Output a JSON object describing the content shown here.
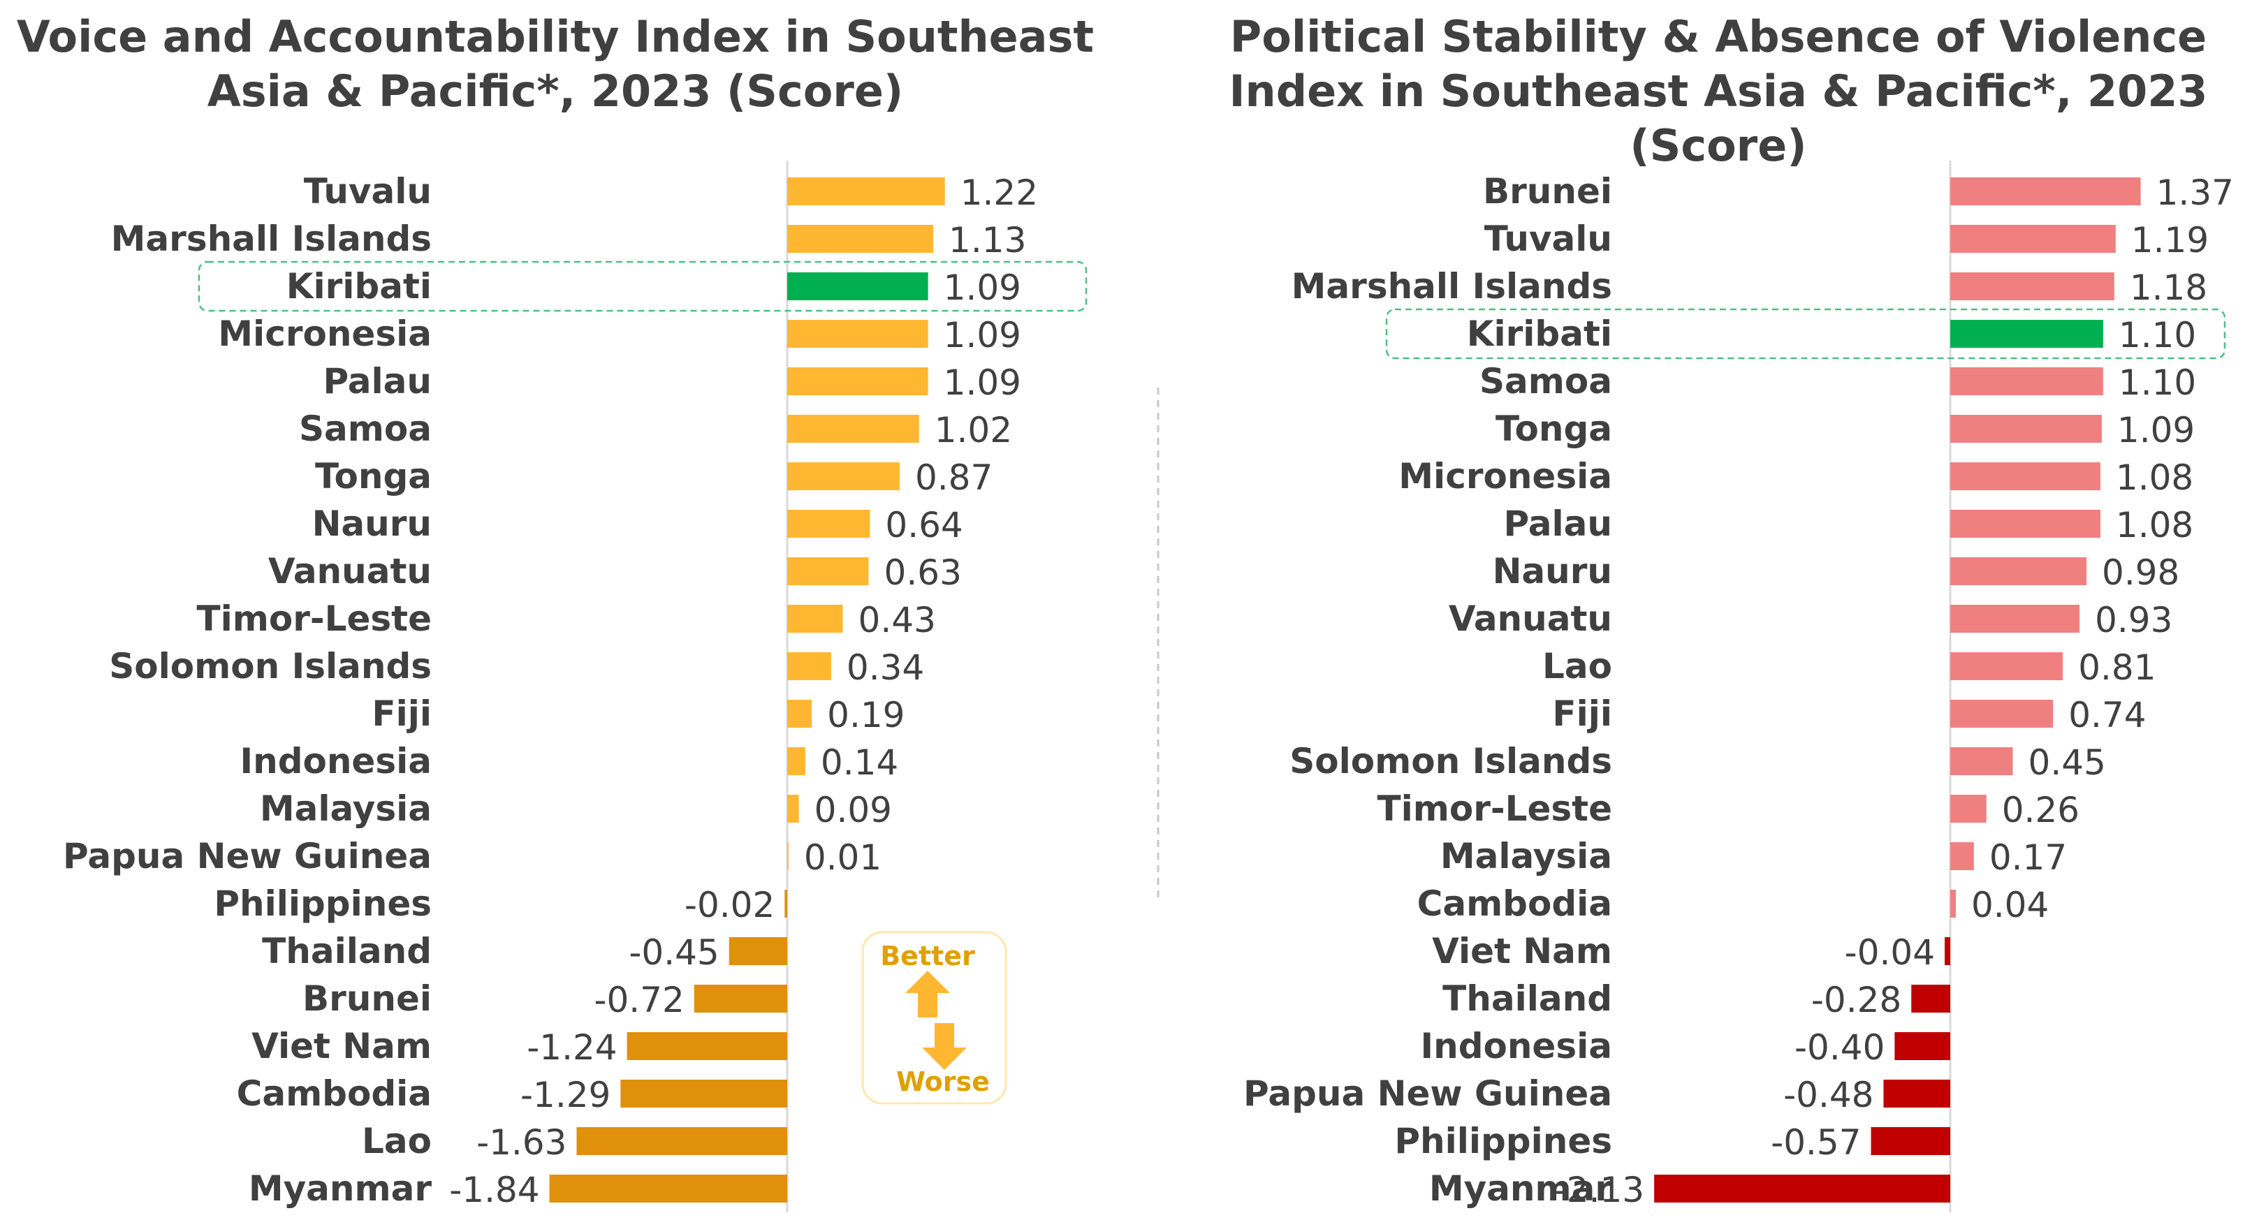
{
  "colors": {
    "highlight": "#00B050",
    "left_positive": "#FFB732",
    "left_negative": "#E0900A",
    "right_positive": "#F08080",
    "right_negative": "#C00000",
    "highlight_box": "#4CC080",
    "legend_arrow": "#FFB732",
    "legend_text": "#E0A000"
  },
  "legend": {
    "better": "Better",
    "worse": "Worse",
    "icons": [
      "arrow-up-icon",
      "arrow-down-icon"
    ]
  },
  "chart_data": [
    {
      "type": "bar",
      "orientation": "horizontal",
      "title": "Voice and Accountability Index in Southeast Asia & Pacific*, 2023 (Score)",
      "highlight": "Kiribati",
      "categories": [
        "Tuvalu",
        "Marshall Islands",
        "Kiribati",
        "Micronesia",
        "Palau",
        "Samoa",
        "Tonga",
        "Nauru",
        "Vanuatu",
        "Timor-Leste",
        "Solomon Islands",
        "Fiji",
        "Indonesia",
        "Malaysia",
        "Papua New Guinea",
        "Philippines",
        "Thailand",
        "Brunei",
        "Viet Nam",
        "Cambodia",
        "Lao",
        "Myanmar"
      ],
      "values": [
        1.22,
        1.13,
        1.09,
        1.09,
        1.09,
        1.02,
        0.87,
        0.64,
        0.63,
        0.43,
        0.34,
        0.19,
        0.14,
        0.09,
        0.01,
        -0.02,
        -0.45,
        -0.72,
        -1.24,
        -1.29,
        -1.63,
        -1.84
      ],
      "labels": [
        "1.22",
        "1.13",
        "1.09",
        "1.09",
        "1.09",
        "1.02",
        "0.87",
        "0.64",
        "0.63",
        "0.43",
        "0.34",
        "0.19",
        "0.14",
        "0.09",
        "0.01",
        "-0.02",
        "-0.45",
        "-0.72",
        "-1.24",
        "-1.29",
        "-1.63",
        "-1.84"
      ],
      "xlim": [
        -2.0,
        1.5
      ]
    },
    {
      "type": "bar",
      "orientation": "horizontal",
      "title": "Political Stability & Absence of Violence Index in Southeast Asia & Pacific*, 2023 (Score)",
      "highlight": "Kiribati",
      "categories": [
        "Brunei",
        "Tuvalu",
        "Marshall Islands",
        "Kiribati",
        "Samoa",
        "Tonga",
        "Micronesia",
        "Palau",
        "Nauru",
        "Vanuatu",
        "Lao",
        "Fiji",
        "Solomon Islands",
        "Timor-Leste",
        "Malaysia",
        "Cambodia",
        "Viet Nam",
        "Thailand",
        "Indonesia",
        "Papua New Guinea",
        "Philippines",
        "Myanmar"
      ],
      "values": [
        1.37,
        1.19,
        1.18,
        1.1,
        1.1,
        1.09,
        1.08,
        1.08,
        0.98,
        0.93,
        0.81,
        0.74,
        0.45,
        0.26,
        0.17,
        0.04,
        -0.04,
        -0.28,
        -0.4,
        -0.48,
        -0.57,
        -2.13
      ],
      "labels": [
        "1.37",
        "1.19",
        "1.18",
        "1.10",
        "1.10",
        "1.09",
        "1.08",
        "1.08",
        "0.98",
        "0.93",
        "0.81",
        "0.74",
        "0.45",
        "0.26",
        "0.17",
        "0.04",
        "-0.04",
        "-0.28",
        "-0.40",
        "-0.48",
        "-0.57",
        "-2.13"
      ],
      "xlim": [
        -2.5,
        1.6
      ]
    }
  ]
}
